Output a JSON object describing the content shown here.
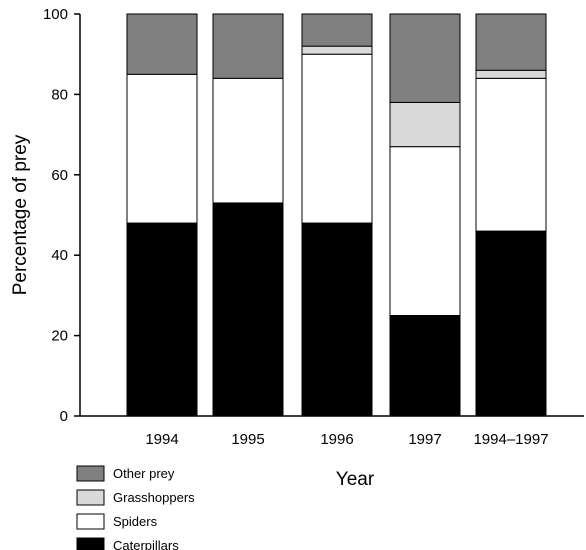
{
  "chart_data": {
    "type": "bar",
    "stacked": true,
    "categories": [
      "1994",
      "1995",
      "1996",
      "1997",
      "1994–1997"
    ],
    "series": [
      {
        "name": "Caterpillars",
        "color": "#000000",
        "values": [
          48,
          53,
          48,
          25,
          46
        ]
      },
      {
        "name": "Spiders",
        "color": "#ffffff",
        "values": [
          37,
          31,
          42,
          42,
          38
        ]
      },
      {
        "name": "Grasshoppers",
        "color": "#d9d9d9",
        "values": [
          0,
          0,
          2,
          11,
          2
        ]
      },
      {
        "name": "Other prey",
        "color": "#808080",
        "values": [
          15,
          16,
          8,
          22,
          14
        ]
      }
    ],
    "title": "",
    "xlabel": "Year",
    "ylabel": "Percentage of prey",
    "ylim": [
      0,
      100
    ],
    "yticks": [
      0,
      20,
      40,
      60,
      80,
      100
    ],
    "grid": false,
    "legend_position": "bottom-left",
    "legend_order": [
      "Other prey",
      "Grasshoppers",
      "Spiders",
      "Caterpillars"
    ]
  }
}
